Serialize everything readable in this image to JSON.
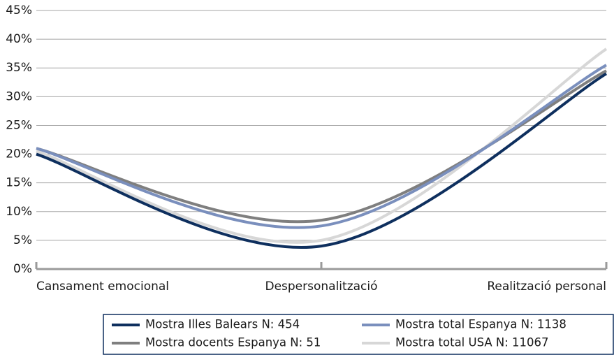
{
  "chart_data": {
    "type": "line",
    "categories": [
      "Cansament emocional",
      "Despersonalització",
      "Realització personal"
    ],
    "series": [
      {
        "name": "Mostra Illes Balears N: 454",
        "color": "#0e2f5e",
        "values": [
          20,
          4,
          34
        ]
      },
      {
        "name": "Mostra total Espanya N: 1138",
        "color": "#7a8fbd",
        "values": [
          21,
          7.5,
          35.5
        ]
      },
      {
        "name": "Mostra docents Espanya N: 51",
        "color": "#7f7f7f",
        "values": [
          21,
          8.5,
          34.5
        ]
      },
      {
        "name": "Mostra total USA N: 11067",
        "color": "#d7d7d7",
        "values": [
          20.5,
          5,
          38.3
        ]
      }
    ],
    "ylim": [
      0,
      45
    ],
    "yticks": [
      {
        "value": 0,
        "label": "0%"
      },
      {
        "value": 5,
        "label": "5%"
      },
      {
        "value": 10,
        "label": "10%"
      },
      {
        "value": 15,
        "label": "15%"
      },
      {
        "value": 20,
        "label": "20%"
      },
      {
        "value": 25,
        "label": "25%"
      },
      {
        "value": 30,
        "label": "30%"
      },
      {
        "value": 35,
        "label": "35%"
      },
      {
        "value": 40,
        "label": "40%"
      },
      {
        "value": 45,
        "label": "45%"
      }
    ],
    "grid": true
  }
}
